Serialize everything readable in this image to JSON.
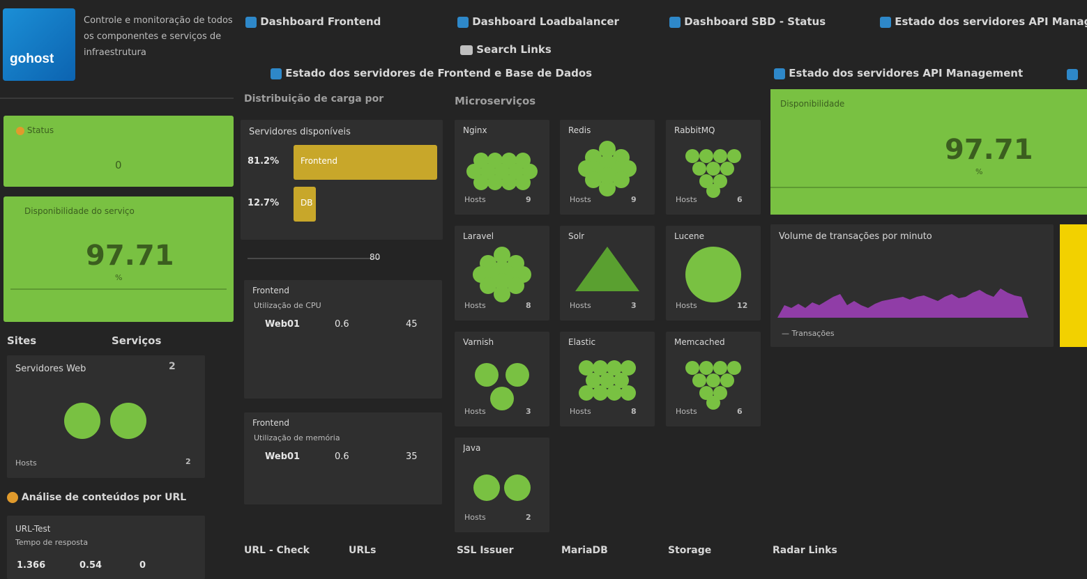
{
  "header": {
    "logo_text": "gohost",
    "description": "Controle e monitoração de todos os componentes e serviços de infraestrutura"
  },
  "dashboard_links": [
    {
      "label": "Dashboard Frontend",
      "icon": "dashboard-icon"
    },
    {
      "label": "Dashboard Loadbalancer",
      "icon": "dashboard-icon"
    },
    {
      "label": "Dashboard SBD - Status",
      "icon": "dashboard-icon"
    },
    {
      "label": "Estado dos servidores API Management",
      "icon": "dashboard-icon"
    }
  ],
  "secondary_links": {
    "search_label": "Search Links",
    "status_label": "Estado dos servidores de Frontend e Base de Dados",
    "api_label": "Estado dos servidores API Management"
  },
  "left": {
    "tile1_title": "Status",
    "tile1_value": "0",
    "tile2_title": "Disponibilidade do serviço",
    "tile2_value": "97.71",
    "tile2_unit": "%",
    "tabs": [
      "Sites",
      "Serviços"
    ],
    "hosts_tile_title": "Servidores Web",
    "hosts_tile_count": "2",
    "hosts_tile_footer": "Hosts",
    "hosts_tile_footer_value": "2",
    "section_title": "Análise de conteúdos por URL",
    "bottom_tile_title": "URL-Test",
    "bottom_tile_sub": "Tempo de resposta",
    "bottom_tile_values": [
      "1.366",
      "0.54",
      "0"
    ]
  },
  "middle": {
    "header": "Distribuição de carga por",
    "bar_tile_title": "Servidores disponíveis",
    "bars": [
      {
        "label": "81.2%",
        "value": 81.2,
        "text": "Frontend"
      },
      {
        "label": "12.7%",
        "value": 12.7,
        "text": "DB"
      }
    ],
    "slider_value": "80",
    "frontend1_title": "Frontend",
    "frontend1_sub": "Utilização de CPU",
    "frontend1_values": [
      "Web01",
      "0.6",
      "45"
    ],
    "frontend2_title": "Frontend",
    "frontend2_sub": "Utilização de memória",
    "frontend2_values": [
      "Web01",
      "0.6",
      "35"
    ],
    "footer_tabs": [
      "URL - Check",
      "URLs"
    ]
  },
  "micro": {
    "header": "Microserviços",
    "tiles": [
      {
        "title": "Nginx",
        "footer": "Hosts",
        "count": "9"
      },
      {
        "title": "Redis",
        "footer": "Hosts",
        "count": "9"
      },
      {
        "title": "RabbitMQ",
        "footer": "Hosts",
        "count": "6"
      },
      {
        "title": "Laravel",
        "footer": "Hosts",
        "count": "8"
      },
      {
        "title": "Solr",
        "footer": "Hosts",
        "count": "3"
      },
      {
        "title": "Lucene",
        "footer": "Hosts",
        "count": "12"
      },
      {
        "title": "Varnish",
        "footer": "Hosts",
        "count": "3"
      },
      {
        "title": "Elastic",
        "footer": "Hosts",
        "count": "8"
      },
      {
        "title": "Memcached",
        "footer": "Hosts",
        "count": "6"
      },
      {
        "title": "Java",
        "footer": "Hosts",
        "count": "2"
      }
    ],
    "footer_tabs": [
      "SSL Issuer",
      "MariaDB",
      "Storage",
      "Radar Links"
    ]
  },
  "right": {
    "green_title": "Disponibilidade",
    "green_value": "97.71",
    "green_unit": "%",
    "chart_title": "Volume de transações por minuto",
    "chart_footer": "— Transações",
    "chart_color": "#9b3fb5"
  },
  "colors": {
    "ok": "#79c142",
    "warn": "#f2d100",
    "bar": "#c8a72a",
    "accent": "#2e88c9"
  }
}
